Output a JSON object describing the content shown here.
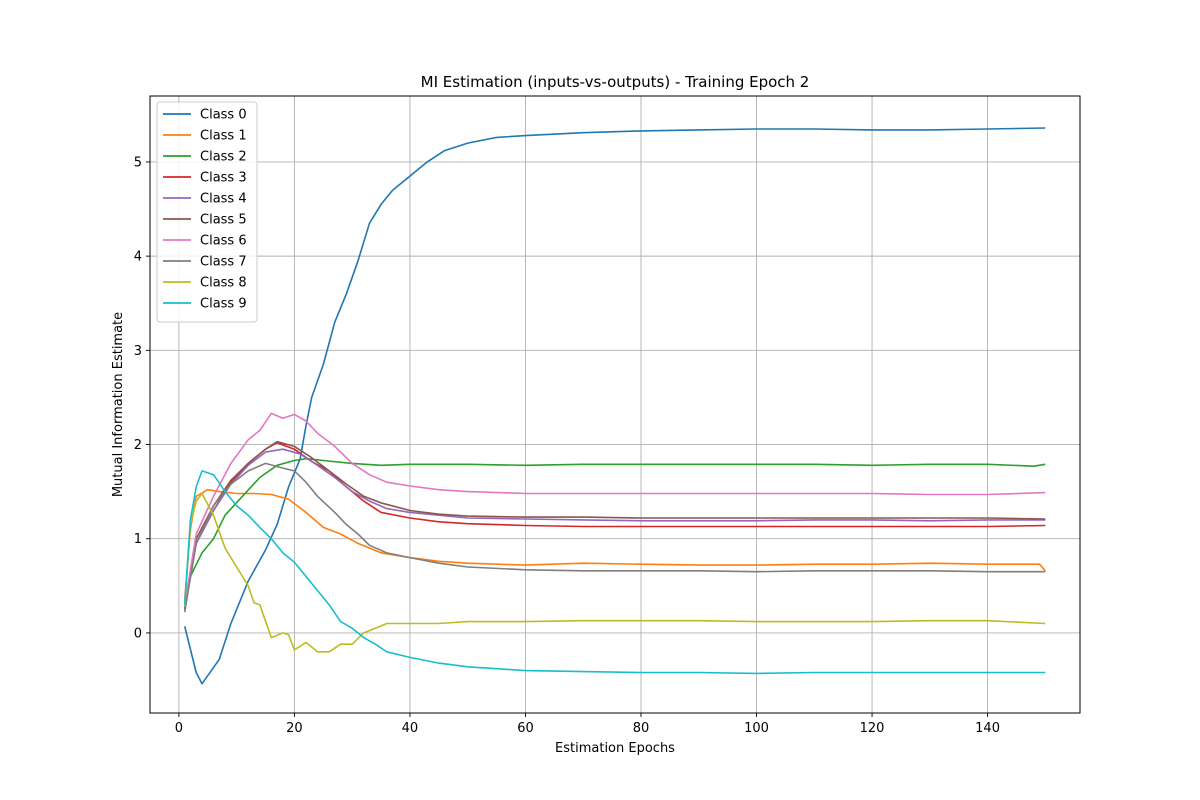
{
  "chart_data": {
    "type": "line",
    "title": "MI Estimation (inputs-vs-outputs) - Training Epoch 2",
    "xlabel": "Estimation Epochs",
    "ylabel": "Mutual Information Estimate",
    "xlim": [
      -5,
      156
    ],
    "ylim": [
      -0.85,
      5.7
    ],
    "xticks": [
      0,
      20,
      40,
      60,
      80,
      100,
      120,
      140
    ],
    "yticks": [
      0,
      1,
      2,
      3,
      4,
      5
    ],
    "grid": true,
    "legend_position": "upper-left",
    "series": [
      {
        "name": "Class 0",
        "color": "#1f77b4",
        "points": [
          [
            1,
            0.07
          ],
          [
            3,
            -0.42
          ],
          [
            4,
            -0.54
          ],
          [
            7,
            -0.28
          ],
          [
            9,
            0.1
          ],
          [
            12,
            0.55
          ],
          [
            15,
            0.88
          ],
          [
            17,
            1.15
          ],
          [
            19,
            1.55
          ],
          [
            21,
            1.85
          ],
          [
            22,
            2.2
          ],
          [
            23,
            2.5
          ],
          [
            25,
            2.85
          ],
          [
            27,
            3.3
          ],
          [
            29,
            3.6
          ],
          [
            31,
            3.95
          ],
          [
            33,
            4.35
          ],
          [
            35,
            4.55
          ],
          [
            37,
            4.7
          ],
          [
            40,
            4.85
          ],
          [
            43,
            5.0
          ],
          [
            46,
            5.12
          ],
          [
            50,
            5.2
          ],
          [
            55,
            5.26
          ],
          [
            60,
            5.28
          ],
          [
            70,
            5.31
          ],
          [
            80,
            5.33
          ],
          [
            90,
            5.34
          ],
          [
            100,
            5.35
          ],
          [
            110,
            5.35
          ],
          [
            120,
            5.34
          ],
          [
            130,
            5.34
          ],
          [
            140,
            5.35
          ],
          [
            150,
            5.36
          ]
        ]
      },
      {
        "name": "Class 1",
        "color": "#ff7f0e",
        "points": [
          [
            1,
            0.35
          ],
          [
            2,
            1.1
          ],
          [
            3,
            1.45
          ],
          [
            5,
            1.52
          ],
          [
            7,
            1.5
          ],
          [
            10,
            1.48
          ],
          [
            13,
            1.48
          ],
          [
            16,
            1.47
          ],
          [
            19,
            1.42
          ],
          [
            22,
            1.28
          ],
          [
            25,
            1.12
          ],
          [
            28,
            1.05
          ],
          [
            31,
            0.95
          ],
          [
            35,
            0.85
          ],
          [
            40,
            0.8
          ],
          [
            45,
            0.76
          ],
          [
            50,
            0.74
          ],
          [
            60,
            0.72
          ],
          [
            70,
            0.74
          ],
          [
            80,
            0.73
          ],
          [
            90,
            0.72
          ],
          [
            100,
            0.72
          ],
          [
            110,
            0.73
          ],
          [
            120,
            0.73
          ],
          [
            130,
            0.74
          ],
          [
            140,
            0.73
          ],
          [
            149,
            0.73
          ],
          [
            150,
            0.66
          ]
        ]
      },
      {
        "name": "Class 2",
        "color": "#2ca02c",
        "points": [
          [
            1,
            0.28
          ],
          [
            2,
            0.6
          ],
          [
            4,
            0.85
          ],
          [
            6,
            1.0
          ],
          [
            8,
            1.25
          ],
          [
            11,
            1.45
          ],
          [
            14,
            1.65
          ],
          [
            17,
            1.78
          ],
          [
            20,
            1.83
          ],
          [
            22,
            1.85
          ],
          [
            25,
            1.83
          ],
          [
            30,
            1.8
          ],
          [
            35,
            1.78
          ],
          [
            40,
            1.79
          ],
          [
            50,
            1.79
          ],
          [
            60,
            1.78
          ],
          [
            70,
            1.79
          ],
          [
            80,
            1.79
          ],
          [
            90,
            1.79
          ],
          [
            100,
            1.79
          ],
          [
            110,
            1.79
          ],
          [
            120,
            1.78
          ],
          [
            130,
            1.79
          ],
          [
            140,
            1.79
          ],
          [
            148,
            1.77
          ],
          [
            150,
            1.79
          ]
        ]
      },
      {
        "name": "Class 3",
        "color": "#d62728",
        "points": [
          [
            1,
            0.25
          ],
          [
            3,
            0.95
          ],
          [
            6,
            1.3
          ],
          [
            9,
            1.6
          ],
          [
            12,
            1.8
          ],
          [
            15,
            1.95
          ],
          [
            17,
            2.02
          ],
          [
            20,
            1.95
          ],
          [
            23,
            1.82
          ],
          [
            26,
            1.72
          ],
          [
            29,
            1.55
          ],
          [
            32,
            1.4
          ],
          [
            35,
            1.28
          ],
          [
            40,
            1.22
          ],
          [
            45,
            1.18
          ],
          [
            50,
            1.16
          ],
          [
            60,
            1.14
          ],
          [
            70,
            1.13
          ],
          [
            80,
            1.13
          ],
          [
            90,
            1.13
          ],
          [
            100,
            1.13
          ],
          [
            110,
            1.13
          ],
          [
            120,
            1.13
          ],
          [
            130,
            1.13
          ],
          [
            140,
            1.13
          ],
          [
            150,
            1.14
          ]
        ]
      },
      {
        "name": "Class 4",
        "color": "#9467bd",
        "points": [
          [
            1,
            0.25
          ],
          [
            3,
            0.95
          ],
          [
            6,
            1.3
          ],
          [
            9,
            1.58
          ],
          [
            12,
            1.78
          ],
          [
            15,
            1.92
          ],
          [
            18,
            1.95
          ],
          [
            21,
            1.9
          ],
          [
            24,
            1.78
          ],
          [
            27,
            1.65
          ],
          [
            30,
            1.5
          ],
          [
            33,
            1.4
          ],
          [
            36,
            1.32
          ],
          [
            40,
            1.28
          ],
          [
            45,
            1.25
          ],
          [
            50,
            1.22
          ],
          [
            60,
            1.21
          ],
          [
            70,
            1.2
          ],
          [
            80,
            1.19
          ],
          [
            90,
            1.19
          ],
          [
            100,
            1.19
          ],
          [
            110,
            1.2
          ],
          [
            120,
            1.2
          ],
          [
            130,
            1.19
          ],
          [
            140,
            1.2
          ],
          [
            150,
            1.2
          ]
        ]
      },
      {
        "name": "Class 5",
        "color": "#8c564b",
        "points": [
          [
            1,
            0.25
          ],
          [
            3,
            1.0
          ],
          [
            6,
            1.35
          ],
          [
            9,
            1.62
          ],
          [
            12,
            1.8
          ],
          [
            15,
            1.95
          ],
          [
            17,
            2.03
          ],
          [
            20,
            1.98
          ],
          [
            23,
            1.86
          ],
          [
            26,
            1.72
          ],
          [
            29,
            1.58
          ],
          [
            32,
            1.45
          ],
          [
            35,
            1.38
          ],
          [
            40,
            1.3
          ],
          [
            45,
            1.26
          ],
          [
            50,
            1.24
          ],
          [
            60,
            1.23
          ],
          [
            70,
            1.23
          ],
          [
            80,
            1.22
          ],
          [
            90,
            1.22
          ],
          [
            100,
            1.22
          ],
          [
            110,
            1.22
          ],
          [
            120,
            1.22
          ],
          [
            130,
            1.22
          ],
          [
            140,
            1.22
          ],
          [
            150,
            1.21
          ]
        ]
      },
      {
        "name": "Class 6",
        "color": "#e377c2",
        "points": [
          [
            1,
            0.3
          ],
          [
            3,
            1.05
          ],
          [
            6,
            1.45
          ],
          [
            9,
            1.8
          ],
          [
            12,
            2.05
          ],
          [
            14,
            2.15
          ],
          [
            16,
            2.33
          ],
          [
            18,
            2.28
          ],
          [
            20,
            2.32
          ],
          [
            22,
            2.25
          ],
          [
            24,
            2.12
          ],
          [
            27,
            1.98
          ],
          [
            30,
            1.8
          ],
          [
            33,
            1.68
          ],
          [
            36,
            1.6
          ],
          [
            40,
            1.56
          ],
          [
            45,
            1.52
          ],
          [
            50,
            1.5
          ],
          [
            60,
            1.48
          ],
          [
            70,
            1.48
          ],
          [
            80,
            1.48
          ],
          [
            90,
            1.48
          ],
          [
            100,
            1.48
          ],
          [
            110,
            1.48
          ],
          [
            120,
            1.48
          ],
          [
            130,
            1.47
          ],
          [
            140,
            1.47
          ],
          [
            150,
            1.49
          ]
        ]
      },
      {
        "name": "Class 7",
        "color": "#7f7f7f",
        "points": [
          [
            1,
            0.22
          ],
          [
            3,
            0.95
          ],
          [
            6,
            1.35
          ],
          [
            9,
            1.58
          ],
          [
            12,
            1.72
          ],
          [
            15,
            1.8
          ],
          [
            18,
            1.75
          ],
          [
            20,
            1.72
          ],
          [
            22,
            1.6
          ],
          [
            24,
            1.45
          ],
          [
            27,
            1.28
          ],
          [
            29,
            1.15
          ],
          [
            31,
            1.05
          ],
          [
            33,
            0.93
          ],
          [
            36,
            0.85
          ],
          [
            40,
            0.8
          ],
          [
            45,
            0.74
          ],
          [
            50,
            0.7
          ],
          [
            60,
            0.67
          ],
          [
            70,
            0.66
          ],
          [
            80,
            0.66
          ],
          [
            90,
            0.66
          ],
          [
            100,
            0.65
          ],
          [
            110,
            0.66
          ],
          [
            120,
            0.66
          ],
          [
            130,
            0.66
          ],
          [
            140,
            0.65
          ],
          [
            150,
            0.65
          ]
        ]
      },
      {
        "name": "Class 8",
        "color": "#bcbd22",
        "points": [
          [
            1,
            0.28
          ],
          [
            2,
            1.15
          ],
          [
            3,
            1.4
          ],
          [
            4,
            1.48
          ],
          [
            6,
            1.25
          ],
          [
            8,
            0.9
          ],
          [
            10,
            0.7
          ],
          [
            12,
            0.5
          ],
          [
            13,
            0.32
          ],
          [
            14,
            0.3
          ],
          [
            16,
            -0.05
          ],
          [
            18,
            0.0
          ],
          [
            19,
            -0.02
          ],
          [
            20,
            -0.18
          ],
          [
            22,
            -0.1
          ],
          [
            24,
            -0.2
          ],
          [
            26,
            -0.2
          ],
          [
            28,
            -0.12
          ],
          [
            30,
            -0.12
          ],
          [
            32,
            0.0
          ],
          [
            34,
            0.05
          ],
          [
            36,
            0.1
          ],
          [
            40,
            0.1
          ],
          [
            45,
            0.1
          ],
          [
            50,
            0.12
          ],
          [
            60,
            0.12
          ],
          [
            70,
            0.13
          ],
          [
            80,
            0.13
          ],
          [
            90,
            0.13
          ],
          [
            100,
            0.12
          ],
          [
            110,
            0.12
          ],
          [
            120,
            0.12
          ],
          [
            130,
            0.13
          ],
          [
            140,
            0.13
          ],
          [
            150,
            0.1
          ]
        ]
      },
      {
        "name": "Class 9",
        "color": "#17becf",
        "points": [
          [
            1,
            0.3
          ],
          [
            2,
            1.2
          ],
          [
            3,
            1.55
          ],
          [
            4,
            1.72
          ],
          [
            6,
            1.68
          ],
          [
            8,
            1.5
          ],
          [
            10,
            1.35
          ],
          [
            12,
            1.25
          ],
          [
            14,
            1.12
          ],
          [
            16,
            1.0
          ],
          [
            18,
            0.85
          ],
          [
            20,
            0.75
          ],
          [
            22,
            0.6
          ],
          [
            24,
            0.45
          ],
          [
            26,
            0.3
          ],
          [
            28,
            0.12
          ],
          [
            30,
            0.05
          ],
          [
            32,
            -0.05
          ],
          [
            34,
            -0.12
          ],
          [
            36,
            -0.2
          ],
          [
            40,
            -0.26
          ],
          [
            45,
            -0.32
          ],
          [
            50,
            -0.36
          ],
          [
            55,
            -0.38
          ],
          [
            60,
            -0.4
          ],
          [
            70,
            -0.41
          ],
          [
            80,
            -0.42
          ],
          [
            90,
            -0.42
          ],
          [
            100,
            -0.43
          ],
          [
            110,
            -0.42
          ],
          [
            120,
            -0.42
          ],
          [
            130,
            -0.42
          ],
          [
            140,
            -0.42
          ],
          [
            150,
            -0.42
          ]
        ]
      }
    ]
  }
}
